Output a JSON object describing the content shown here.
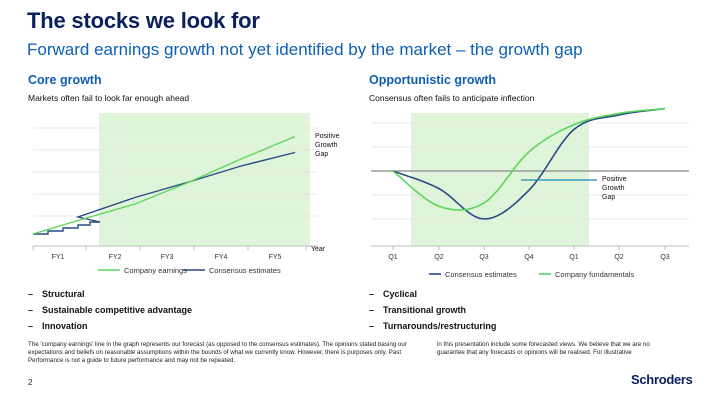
{
  "title": "The stocks we look for",
  "subtitle": "Forward earnings growth not yet identified by the market   – the growth gap",
  "left": {
    "heading": "Core growth",
    "subheading": "Markets often fail to look far enough ahead",
    "bullets": [
      "Structural",
      "Sustainable competitive advantage",
      "Innovation"
    ]
  },
  "right": {
    "heading": "Opportunistic growth",
    "subheading": "Consensus often fails to anticipate inflection",
    "bullets": [
      "Cyclical",
      "Transitional growth",
      "Turnarounds/restructuring"
    ]
  },
  "disclaimer": {
    "left": "The 'company earnings' line in the graph represents our forecast (as opposed to the consensus estimates). The opinions stated basing our expectations and beliefs on reasonable assumptions within the bounds of what we currently know. However, there is purposes only. Past Performance is not a guide to future performance and may not be repeated.",
    "right": "in this presentation include some forecasted views. We believe that we are no guarantee that any forecasts or opinions will be realised. For illustrative"
  },
  "page_number": "2",
  "logo_text": "Schroders",
  "colors": {
    "navy": "#0a1f5c",
    "blue": "#0e5fb4",
    "green_line": "#5bd65b",
    "shade": "#dff5da",
    "consensus_line": "#2a4a86",
    "teal_arrow": "#1f8ab0"
  },
  "chart_data": [
    {
      "type": "line",
      "x": [
        "FY1",
        "FY2",
        "FY3",
        "FY4",
        "FY5"
      ],
      "xlabel": "Year",
      "shaded_region": [
        "FY2",
        "FY5"
      ],
      "annotation": "Positive Growth Gap",
      "series": [
        {
          "name": "Company earnings",
          "color": "#5bd65b",
          "values": [
            0.45,
            1.0,
            1.7,
            2.5,
            3.25
          ]
        },
        {
          "name": "Consensus estimates",
          "color": "#2a4a86",
          "values": [
            0.3,
            0.95,
            1.45,
            2.0,
            2.45
          ]
        }
      ]
    },
    {
      "type": "line",
      "x": [
        "Q1",
        "Q2",
        "Q3",
        "Q4",
        "Q1",
        "Q2",
        "Q3"
      ],
      "shaded_region": [
        "Q1",
        "Q1"
      ],
      "annotation": "Positive Growth Gap",
      "series": [
        {
          "name": "Consensus estimates",
          "color": "#2a4a86",
          "values": [
            0,
            -0.55,
            -1.5,
            -0.6,
            1.3,
            1.75,
            1.95
          ]
        },
        {
          "name": "Company fundamentals",
          "color": "#5bd65b",
          "values": [
            0,
            -1.1,
            -1.0,
            0.6,
            1.45,
            1.8,
            1.95
          ]
        }
      ]
    }
  ]
}
